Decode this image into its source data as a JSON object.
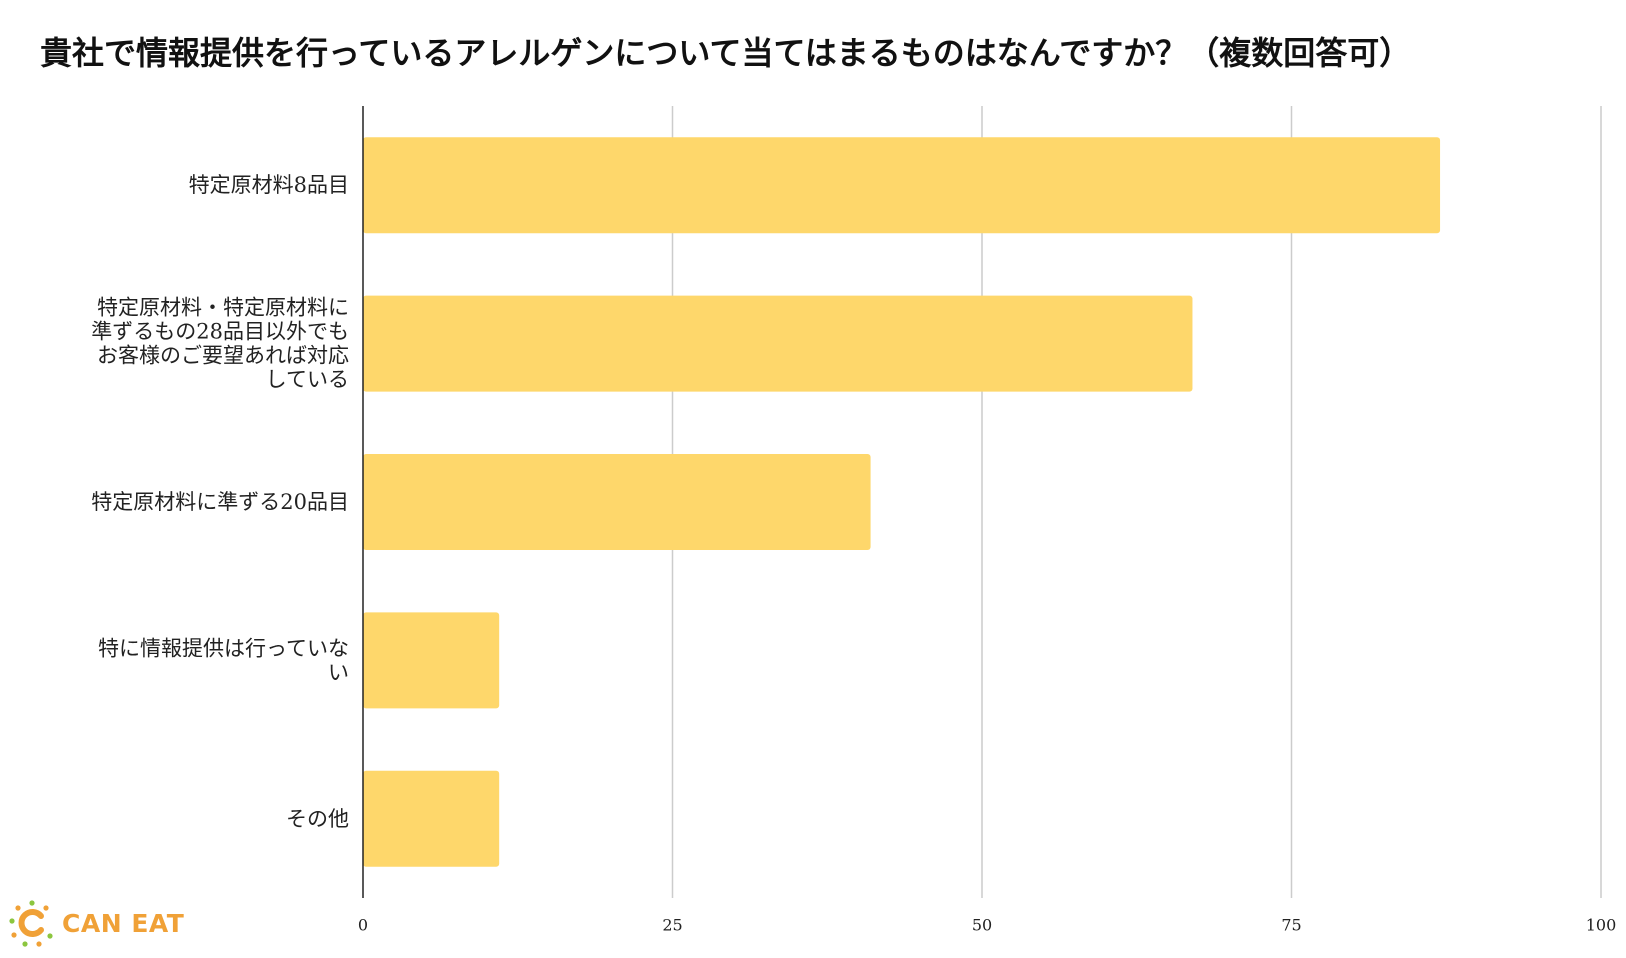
{
  "chart_data": {
    "type": "bar",
    "orientation": "horizontal",
    "title": "貴社で情報提供を行っているアレルゲンについて当てはまるものはなんですか？（複数回答可）",
    "categories": [
      [
        "特定原材料8品目"
      ],
      [
        "特定原材料・特定原材料に",
        "準ずるもの28品目以外でも",
        "お客様のご要望あれば対応",
        "している"
      ],
      [
        "特定原材料に準ずる20品目"
      ],
      [
        "特に情報提供は行っていな",
        "い"
      ],
      [
        "その他"
      ]
    ],
    "values": [
      87,
      67,
      41,
      11,
      11
    ],
    "xlim": [
      0,
      100
    ],
    "xticks": [
      "0",
      "25",
      "50",
      "75",
      "100"
    ],
    "grid": true,
    "bar_color": "#fed76b",
    "grid_color": "#cccccc",
    "axis_color": "#222222"
  },
  "logo": {
    "text": "CAN EAT",
    "color": "#f0a137",
    "icon": "can-eat-logo-icon"
  }
}
